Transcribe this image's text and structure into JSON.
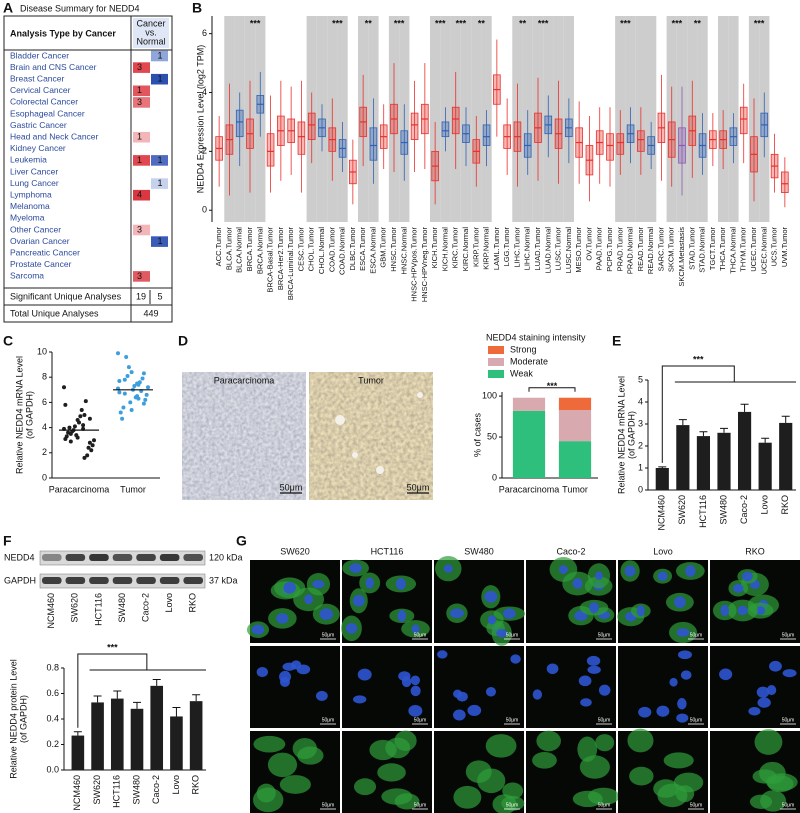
{
  "panel_letters": [
    "A",
    "B",
    "C",
    "D",
    "E",
    "F",
    "G"
  ],
  "table": {
    "title": "Disease Summary for NEDD4",
    "header": "Analysis Type by Cancer",
    "col_header": [
      "Cancer",
      "vs.",
      "Normal"
    ],
    "rows": [
      {
        "name": "Bladder Cancer",
        "under": 1,
        "under_color": "#8fa6da"
      },
      {
        "name": "Brain and CNS Cancer",
        "over": 3,
        "over_color": "#e0474e"
      },
      {
        "name": "Breast Cancer",
        "under": 1,
        "under_color": "#2b50b0"
      },
      {
        "name": "Cervical Cancer",
        "over": 1,
        "over_color": "#e2565e"
      },
      {
        "name": "Colorectal Cancer",
        "over": 3,
        "over_color": "#e7747a"
      },
      {
        "name": "Esophageal Cancer"
      },
      {
        "name": "Gastric Cancer"
      },
      {
        "name": "Head and Neck Cancer",
        "over": 1,
        "over_color": "#f3b5b8"
      },
      {
        "name": "Kidney Cancer"
      },
      {
        "name": "Leukemia",
        "over": 1,
        "over_color": "#e0474e",
        "under": 1,
        "under_color": "#4f6cc0"
      },
      {
        "name": "Liver Cancer"
      },
      {
        "name": "Lung Cancer",
        "under": 1,
        "under_color": "#c6d1ee"
      },
      {
        "name": "Lymphoma",
        "over": 4,
        "over_color": "#d93840"
      },
      {
        "name": "Melanoma"
      },
      {
        "name": "Myeloma"
      },
      {
        "name": "Other Cancer",
        "over": 3,
        "over_color": "#f3b5b8"
      },
      {
        "name": "Ovarian Cancer",
        "under": 1,
        "under_color": "#3a5cb8"
      },
      {
        "name": "Pancreatic Cancer"
      },
      {
        "name": "Prostate Cancer"
      },
      {
        "name": "Sarcoma",
        "over": 3,
        "over_color": "#e25a61"
      }
    ],
    "footer": [
      {
        "label": "Significant Unique Analyses",
        "values": [
          19,
          5
        ]
      },
      {
        "label": "Total Unique Analyses",
        "values": [
          449
        ]
      }
    ]
  },
  "chart_data": [
    {
      "type": "box",
      "ylabel": "NEDD4 Expression Level (log2 TPM)",
      "ylim": [
        -0.4,
        6.6
      ],
      "yticks": [
        0,
        2,
        4,
        6
      ],
      "tumor_color": "#e8302c",
      "normal_color": "#2f62b4",
      "metastasis_color": "#8a5bb3",
      "shade_color": "#cdcdcd",
      "categories": [
        "ACC.Tumor",
        "BLCA.Tumor",
        "BLCA.Normal",
        "BRCA.Tumor",
        "BRCA.Normal",
        "BRCA-Basal.Tumor",
        "BRCA-Her2.Tumor",
        "BRCA-Luminal.Tumor",
        "CESC.Tumor",
        "CHOL.Tumor",
        "CHOL.Normal",
        "COAD.Tumor",
        "COAD.Normal",
        "DLBC.Tumor",
        "ESCA.Tumor",
        "ESCA.Normal",
        "GBM.Tumor",
        "HNSC.Tumor",
        "HNSC.Normal",
        "HNSC-HPVpos.Tumor",
        "HNSC-HPVneg.Tumor",
        "KICH.Tumor",
        "KICH.Normal",
        "KIRC.Tumor",
        "KIRC.Normal",
        "KIRP.Tumor",
        "KIRP.Normal",
        "LAML.Tumor",
        "LGG.Tumor",
        "LIHC.Tumor",
        "LIHC.Normal",
        "LUAD.Tumor",
        "LUAD.Normal",
        "LUSC.Tumor",
        "LUSC.Normal",
        "MESO.Tumor",
        "OV.Tumor",
        "PAAD.Tumor",
        "PCPG.Tumor",
        "PRAD.Tumor",
        "PRAD.Normal",
        "READ.Tumor",
        "READ.Normal",
        "SARC.Tumor",
        "SKCM.Tumor",
        "SKCM.Metastasis",
        "STAD.Tumor",
        "STAD.Normal",
        "TGCT.Tumor",
        "THCA.Tumor",
        "THCA.Normal",
        "THYM.Tumor",
        "UCEC.Tumor",
        "UCEC.Normal",
        "UCS.Tumor",
        "UVM.Tumor"
      ],
      "stats": [
        [
          0.8,
          1.7,
          2.1,
          2.5,
          3.2
        ],
        [
          0.5,
          1.9,
          2.4,
          2.9,
          4.3
        ],
        [
          1.5,
          2.5,
          3.0,
          3.4,
          4.0
        ],
        [
          0.6,
          2.1,
          2.6,
          3.1,
          4.4
        ],
        [
          2.5,
          3.3,
          3.6,
          3.9,
          4.7
        ],
        [
          0.6,
          1.5,
          2.0,
          2.6,
          3.9
        ],
        [
          1.0,
          2.2,
          2.7,
          3.2,
          4.4
        ],
        [
          1.2,
          2.3,
          2.7,
          3.1,
          4.2
        ],
        [
          0.6,
          1.9,
          2.5,
          3.0,
          4.4
        ],
        [
          1.6,
          2.4,
          2.9,
          3.3,
          4.0
        ],
        [
          2.0,
          2.5,
          2.8,
          3.1,
          3.6
        ],
        [
          1.0,
          2.0,
          2.4,
          2.8,
          3.8
        ],
        [
          1.3,
          1.8,
          2.1,
          2.4,
          3.0
        ],
        [
          0.2,
          0.9,
          1.3,
          1.7,
          2.4
        ],
        [
          1.5,
          2.5,
          3.0,
          3.5,
          4.6
        ],
        [
          0.9,
          1.7,
          2.2,
          2.8,
          3.8
        ],
        [
          1.4,
          2.1,
          2.5,
          2.9,
          3.6
        ],
        [
          1.3,
          2.6,
          3.1,
          3.6,
          5.0
        ],
        [
          1.0,
          1.9,
          2.3,
          2.7,
          3.6
        ],
        [
          1.3,
          2.4,
          2.9,
          3.3,
          4.4
        ],
        [
          1.4,
          2.6,
          3.1,
          3.6,
          5.0
        ],
        [
          0.2,
          1.0,
          1.5,
          2.0,
          3.0
        ],
        [
          2.0,
          2.5,
          2.7,
          3.0,
          3.5
        ],
        [
          1.4,
          2.6,
          3.1,
          3.5,
          4.7
        ],
        [
          1.5,
          2.3,
          2.6,
          2.9,
          3.5
        ],
        [
          0.8,
          1.6,
          2.0,
          2.4,
          3.2
        ],
        [
          1.5,
          2.2,
          2.5,
          2.9,
          3.4
        ],
        [
          2.5,
          3.6,
          4.1,
          4.6,
          5.8
        ],
        [
          1.2,
          2.1,
          2.5,
          2.9,
          3.8
        ],
        [
          0.8,
          2.0,
          2.5,
          3.0,
          4.3
        ],
        [
          1.2,
          1.8,
          2.2,
          2.6,
          3.4
        ],
        [
          1.0,
          2.3,
          2.8,
          3.3,
          4.5
        ],
        [
          1.8,
          2.6,
          2.9,
          3.2,
          3.9
        ],
        [
          0.9,
          2.1,
          2.6,
          3.1,
          4.4
        ],
        [
          1.6,
          2.5,
          2.8,
          3.1,
          3.8
        ],
        [
          0.9,
          1.8,
          2.3,
          2.8,
          3.7
        ],
        [
          0.3,
          1.2,
          1.7,
          2.2,
          3.2
        ],
        [
          0.9,
          1.9,
          2.3,
          2.7,
          3.5
        ],
        [
          0.8,
          1.7,
          2.2,
          2.6,
          3.5
        ],
        [
          1.2,
          1.9,
          2.3,
          2.6,
          3.4
        ],
        [
          1.6,
          2.3,
          2.6,
          2.9,
          3.5
        ],
        [
          1.2,
          2.0,
          2.4,
          2.7,
          3.5
        ],
        [
          1.4,
          1.9,
          2.2,
          2.5,
          3.0
        ],
        [
          1.0,
          2.3,
          2.8,
          3.3,
          4.6
        ],
        [
          0.8,
          1.8,
          2.4,
          3.0,
          4.2
        ],
        [
          0.5,
          1.6,
          2.2,
          2.8,
          4.2
        ],
        [
          1.1,
          2.2,
          2.7,
          3.2,
          4.4
        ],
        [
          1.2,
          1.8,
          2.2,
          2.6,
          3.3
        ],
        [
          1.5,
          2.1,
          2.4,
          2.7,
          3.3
        ],
        [
          1.4,
          2.1,
          2.4,
          2.7,
          3.4
        ],
        [
          1.6,
          2.2,
          2.5,
          2.8,
          3.3
        ],
        [
          1.6,
          2.6,
          3.1,
          3.5,
          4.3
        ],
        [
          0.3,
          1.3,
          1.9,
          2.5,
          3.8
        ],
        [
          1.8,
          2.5,
          2.9,
          3.3,
          4.0
        ],
        [
          0.6,
          1.1,
          1.5,
          1.9,
          2.6
        ],
        [
          0.1,
          0.6,
          0.9,
          1.3,
          1.8
        ]
      ],
      "significance": [
        null,
        null,
        null,
        null,
        "***",
        null,
        null,
        null,
        null,
        null,
        null,
        null,
        "***",
        null,
        null,
        "**",
        null,
        null,
        "***",
        null,
        null,
        null,
        "***",
        null,
        "***",
        null,
        "**",
        null,
        null,
        null,
        "**",
        null,
        "***",
        null,
        null,
        null,
        null,
        null,
        null,
        null,
        "***",
        null,
        null,
        null,
        null,
        "***",
        null,
        "**",
        null,
        null,
        null,
        null,
        null,
        "***",
        null,
        null
      ]
    },
    {
      "type": "strip",
      "ylabel": [
        "Relative NEDD4 mRNA Level",
        "(of GAPDH)"
      ],
      "ylim": [
        0,
        10
      ],
      "yticks": [
        0,
        2,
        4,
        6,
        8,
        10
      ],
      "categories": [
        "Paracarcinoma",
        "Tumor"
      ],
      "groups": [
        {
          "color": "#1e1e1e",
          "values": [
            3.9,
            4.2,
            3.5,
            2.8,
            4.6,
            3.1,
            5.0,
            3.7,
            2.2,
            4.4,
            3.3,
            6.1,
            3.8,
            2.6,
            4.9,
            3.6,
            1.8,
            4.1,
            3.0,
            5.4,
            4.0,
            2.4,
            3.4,
            7.2,
            3.9,
            2.9,
            4.7,
            3.2,
            5.8,
            1.6
          ]
        },
        {
          "color": "#3d9ede",
          "values": [
            7.1,
            6.5,
            7.8,
            5.9,
            8.4,
            6.8,
            7.4,
            9.6,
            6.2,
            7.0,
            5.2,
            7.6,
            8.1,
            6.6,
            7.3,
            4.7,
            6.9,
            8.8,
            7.2,
            6.4,
            5.6,
            7.9,
            6.0,
            9.9,
            7.5,
            6.7,
            8.3,
            5.4,
            7.7,
            6.3
          ]
        }
      ],
      "means": [
        3.8,
        7.0
      ]
    },
    {
      "type": "stacked_bar",
      "legend_title": "NEDD4 staining intensity",
      "ylabel": "% of cases",
      "ylim": [
        0,
        105
      ],
      "yticks": [
        0,
        50,
        100
      ],
      "categories": [
        "Paracarcinoma",
        "Tumor"
      ],
      "series": [
        {
          "name": "Weak",
          "color": "#2fbf7c",
          "values": [
            82,
            45
          ]
        },
        {
          "name": "Moderate",
          "color": "#d8a9ae",
          "values": [
            16,
            38
          ]
        },
        {
          "name": "Strong",
          "color": "#ef6a3a",
          "values": [
            0,
            15
          ]
        }
      ],
      "significance": "***"
    },
    {
      "type": "bar",
      "ylabel": [
        "Relative NEDD4 mRNA Level",
        "(of GAPDH)"
      ],
      "ylim": [
        0,
        5
      ],
      "yticks": [
        0,
        1,
        2,
        3,
        4,
        5
      ],
      "color": "#1e1e1e",
      "categories": [
        "NCM460",
        "SW620",
        "HCT116",
        "SW480",
        "Caco-2",
        "Lovo",
        "RKO"
      ],
      "values": [
        1.0,
        2.95,
        2.45,
        2.6,
        3.55,
        2.15,
        3.05
      ],
      "errors": [
        0.05,
        0.25,
        0.2,
        0.2,
        0.35,
        0.2,
        0.3
      ],
      "significance": "***"
    },
    {
      "type": "bar",
      "ylabel": [
        "Relative NEDD4 protein Level",
        "(of GAPDH)"
      ],
      "ylim": [
        0,
        0.8
      ],
      "yticks": [
        {
          "value": 0,
          "label": "0.0"
        },
        0.2,
        0.4,
        0.6,
        0.8
      ],
      "color": "#1e1e1e",
      "categories": [
        "NCM460",
        "SW620",
        "HCT116",
        "SW480",
        "Caco-2",
        "Lovo",
        "RKO"
      ],
      "values": [
        0.27,
        0.53,
        0.56,
        0.48,
        0.66,
        0.42,
        0.54
      ],
      "errors": [
        0.03,
        0.05,
        0.06,
        0.05,
        0.05,
        0.07,
        0.05
      ],
      "significance": "***"
    }
  ],
  "ihc": {
    "labels": [
      "Paracarcinoma",
      "Tumor"
    ],
    "scale_bar": "50μm"
  },
  "blot": {
    "proteins": [
      {
        "name": "NEDD4",
        "size": "120 kDa"
      },
      {
        "name": "GAPDH",
        "size": "37 kDa"
      }
    ],
    "lanes": [
      "NCM460",
      "SW620",
      "HCT116",
      "SW480",
      "Caco-2",
      "Lovo",
      "RKO"
    ]
  },
  "if": {
    "cell_lines": [
      "SW620",
      "HCT116",
      "SW480",
      "Caco-2",
      "Lovo",
      "RKO"
    ],
    "scale_bar": "50μm"
  }
}
